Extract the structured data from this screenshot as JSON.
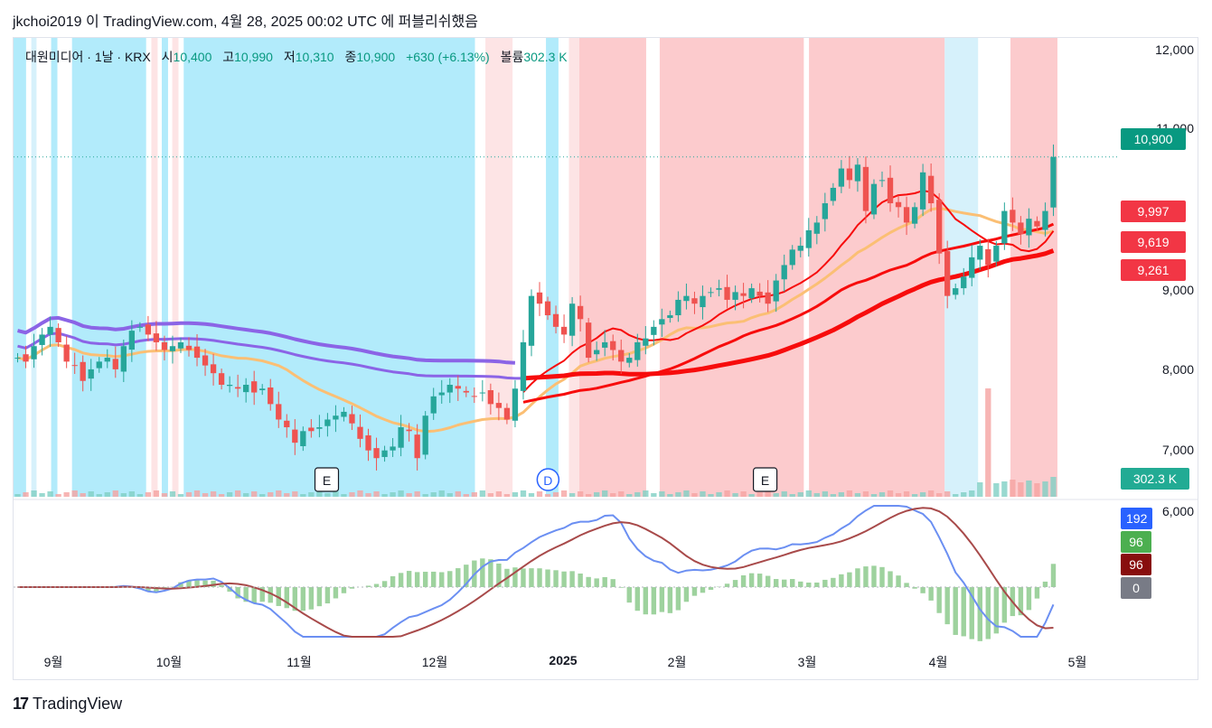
{
  "caption": "jkchoi2019 이 TradingView.com, 4월 28, 2025 00:02 UTC 에 퍼블리쉬했음",
  "legend": {
    "symbol": "대원미디어 · 1날 · KRX",
    "open_label": "시",
    "open": "10,400",
    "high_label": "고",
    "high": "10,990",
    "low_label": "저",
    "low": "10,310",
    "close_label": "종",
    "close": "10,900",
    "change": "+630 (+6.13%)",
    "volume_label": "볼륨",
    "volume": "302.3 K"
  },
  "price_axis": {
    "ticks": [
      {
        "label": "12,000",
        "value": 12000
      },
      {
        "label": "11,000",
        "value": 11000
      },
      {
        "label": "9,000",
        "value": 9000
      },
      {
        "label": "8,000",
        "value": 8000
      },
      {
        "label": "7,000",
        "value": 7000
      },
      {
        "label": "6,000",
        "value": 6000
      }
    ],
    "badges": [
      {
        "label": "10,900",
        "value": 10900,
        "color": "#089981"
      },
      {
        "label": "9,997",
        "value": 9997,
        "color": "#f23645"
      },
      {
        "label": "9,619",
        "value": 9619,
        "color": "#f23645"
      },
      {
        "label": "9,261",
        "value": 9261,
        "color": "#f23645"
      }
    ],
    "volume_badge": {
      "label": "302.3 K",
      "color": "#22ab94"
    }
  },
  "osc_badges": [
    {
      "label": "192",
      "color": "#2962ff"
    },
    {
      "label": "96",
      "color": "#4caf50"
    },
    {
      "label": "96",
      "color": "#880e0e"
    },
    {
      "label": "0",
      "color": "#787b86"
    }
  ],
  "time_axis": [
    {
      "label": "9월",
      "bold": false
    },
    {
      "label": "10월",
      "bold": false
    },
    {
      "label": "11월",
      "bold": false
    },
    {
      "label": "12월",
      "bold": false
    },
    {
      "label": "2025",
      "bold": true
    },
    {
      "label": "2월",
      "bold": false
    },
    {
      "label": "3월",
      "bold": false
    },
    {
      "label": "4월",
      "bold": false
    },
    {
      "label": "5월",
      "bold": false
    }
  ],
  "events": [
    {
      "label": "E",
      "type": "earnings"
    },
    {
      "label": "D",
      "type": "dividend"
    },
    {
      "label": "E",
      "type": "earnings"
    }
  ],
  "colors": {
    "up": "#26a69a",
    "down": "#ef5350",
    "bg_blue": "#b2ebfb",
    "bg_blue_light": "#d6f1fb",
    "bg_red": "#fccbcd",
    "bg_red_light": "#fde4e5",
    "ma_purple": "#8b64e6",
    "ma_red": "#f70c0c",
    "ma_orange": "#fbbf74",
    "macd": "#6b8ff2",
    "signal": "#a84a4a",
    "hist": "#9ed29e"
  },
  "footer": {
    "brand": "TradingView",
    "logo_mark": "17"
  },
  "chart_data": {
    "type": "candlestick",
    "symbol": "대원미디어",
    "last_close": 10900,
    "ylim": [
      6500,
      12300
    ],
    "closes": [
      8300,
      8250,
      8450,
      8600,
      8700,
      8500,
      8250,
      8200,
      8000,
      8150,
      8250,
      8300,
      8150,
      8450,
      8650,
      8700,
      8600,
      8500,
      8400,
      8450,
      8500,
      8400,
      8300,
      8200,
      8100,
      7950,
      7950,
      7900,
      7950,
      7850,
      7900,
      7700,
      7500,
      7400,
      7200,
      7350,
      7350,
      7400,
      7500,
      7550,
      7600,
      7450,
      7250,
      7100,
      7000,
      7100,
      7150,
      7400,
      7350,
      7000,
      7550,
      7800,
      7850,
      7950,
      7900,
      7850,
      7800,
      7850,
      7700,
      7650,
      7500,
      7900,
      8500,
      9100,
      9000,
      8850,
      8700,
      8600,
      9000,
      8800,
      8300,
      8400,
      8500,
      8400,
      8250,
      8300,
      8500,
      8550,
      8700,
      8800,
      8850,
      9050,
      9100,
      9000,
      9100,
      9150,
      9200,
      9050,
      9150,
      9100,
      9200,
      9100,
      9000,
      9300,
      9500,
      9700,
      9750,
      9950,
      10050,
      10300,
      10500,
      10750,
      10600,
      10800,
      10200,
      10550,
      10600,
      10300,
      10250,
      10050,
      10250,
      10700,
      10300,
      9650,
      9100,
      9200,
      9350,
      9600,
      9750,
      9500,
      9750,
      10200,
      10050,
      9900,
      10100,
      10000,
      10200,
      10900
    ],
    "ma_short": {
      "color": "red",
      "last": 9997
    },
    "ma_mid": {
      "color": "red",
      "last": 9619
    },
    "ma_long": {
      "color": "red",
      "last": 9261
    },
    "oscillator": {
      "macd": 192,
      "signal": 96,
      "histogram": 96,
      "zero": 0
    },
    "x_labels": [
      "9월",
      "10월",
      "11월",
      "12월",
      "2025",
      "2월",
      "3월",
      "4월",
      "5월"
    ]
  }
}
